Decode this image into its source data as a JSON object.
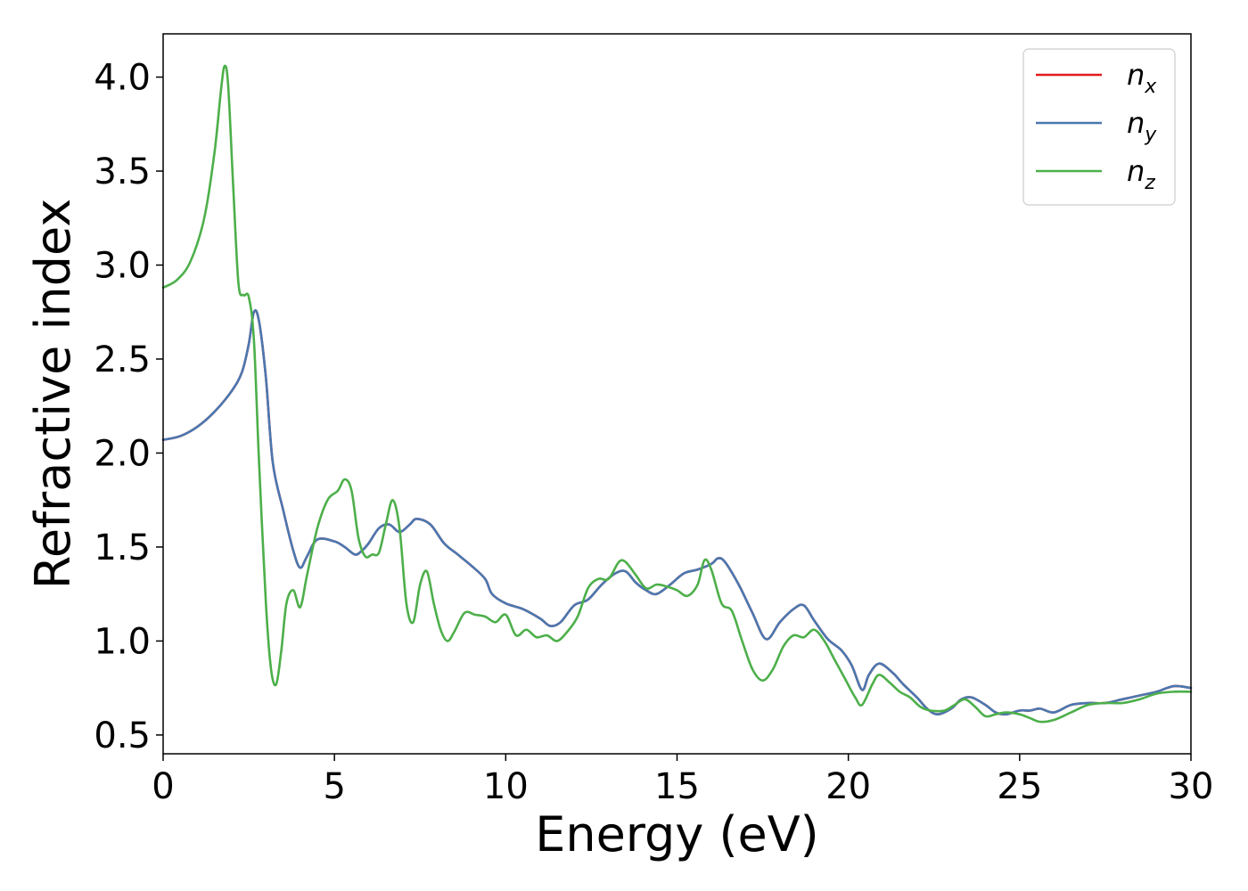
{
  "chart_data": {
    "type": "line",
    "xlabel": "Energy (eV)",
    "ylabel": "Refractive index",
    "xlim": [
      0,
      30
    ],
    "ylim": [
      0.4,
      4.23
    ],
    "xticks": [
      0,
      5,
      10,
      15,
      20,
      25,
      30
    ],
    "yticks": [
      0.5,
      1.0,
      1.5,
      2.0,
      2.5,
      3.0,
      3.5,
      4.0
    ],
    "xtick_labels": [
      "0",
      "5",
      "10",
      "15",
      "20",
      "25",
      "30"
    ],
    "ytick_labels": [
      "0.5",
      "1.0",
      "1.5",
      "2.0",
      "2.5",
      "3.0",
      "3.5",
      "4.0"
    ],
    "grid": false,
    "legend_position": "top-right",
    "series": [
      {
        "name": "n_x",
        "legend_base": "n",
        "legend_sub": "x",
        "color": "#e41a1c",
        "x": [
          0,
          0.5,
          1.0,
          1.5,
          2.0,
          2.3,
          2.5,
          2.65,
          2.8,
          3.0,
          3.2,
          3.5,
          3.8,
          4.0,
          4.2,
          4.5,
          5.0,
          5.3,
          5.6,
          5.8,
          6.0,
          6.3,
          6.6,
          6.9,
          7.2,
          7.4,
          7.8,
          8.2,
          8.6,
          9.0,
          9.4,
          9.6,
          10.0,
          10.5,
          11.0,
          11.3,
          11.6,
          12.0,
          12.4,
          12.8,
          13.2,
          13.5,
          13.8,
          14.1,
          14.4,
          14.8,
          15.2,
          15.6,
          16.0,
          16.2,
          16.4,
          16.8,
          17.2,
          17.6,
          18.0,
          18.4,
          18.7,
          19.0,
          19.4,
          19.8,
          20.1,
          20.4,
          20.6,
          20.9,
          21.3,
          21.6,
          22.0,
          22.3,
          22.6,
          23.0,
          23.3,
          23.6,
          24.0,
          24.3,
          24.6,
          25.0,
          25.3,
          25.6,
          26.0,
          26.5,
          27.0,
          27.5,
          28.0,
          28.5,
          29.0,
          29.5,
          30.0
        ],
        "y": [
          2.07,
          2.09,
          2.14,
          2.22,
          2.33,
          2.43,
          2.58,
          2.75,
          2.7,
          2.4,
          1.95,
          1.7,
          1.48,
          1.39,
          1.45,
          1.54,
          1.53,
          1.5,
          1.46,
          1.48,
          1.52,
          1.6,
          1.62,
          1.58,
          1.62,
          1.65,
          1.62,
          1.52,
          1.46,
          1.4,
          1.33,
          1.25,
          1.2,
          1.17,
          1.12,
          1.08,
          1.1,
          1.19,
          1.22,
          1.3,
          1.36,
          1.37,
          1.31,
          1.27,
          1.25,
          1.3,
          1.36,
          1.38,
          1.41,
          1.44,
          1.42,
          1.3,
          1.15,
          1.01,
          1.1,
          1.17,
          1.19,
          1.11,
          1.01,
          0.95,
          0.87,
          0.74,
          0.82,
          0.88,
          0.83,
          0.77,
          0.7,
          0.64,
          0.61,
          0.64,
          0.69,
          0.7,
          0.66,
          0.62,
          0.61,
          0.63,
          0.63,
          0.64,
          0.62,
          0.66,
          0.67,
          0.67,
          0.69,
          0.71,
          0.73,
          0.76,
          0.75
        ]
      },
      {
        "name": "n_y",
        "legend_base": "n",
        "legend_sub": "y",
        "color": "#4a78b0",
        "x": [
          0,
          0.5,
          1.0,
          1.5,
          2.0,
          2.3,
          2.5,
          2.65,
          2.8,
          3.0,
          3.2,
          3.5,
          3.8,
          4.0,
          4.2,
          4.5,
          5.0,
          5.3,
          5.6,
          5.8,
          6.0,
          6.3,
          6.6,
          6.9,
          7.2,
          7.4,
          7.8,
          8.2,
          8.6,
          9.0,
          9.4,
          9.6,
          10.0,
          10.5,
          11.0,
          11.3,
          11.6,
          12.0,
          12.4,
          12.8,
          13.2,
          13.5,
          13.8,
          14.1,
          14.4,
          14.8,
          15.2,
          15.6,
          16.0,
          16.2,
          16.4,
          16.8,
          17.2,
          17.6,
          18.0,
          18.4,
          18.7,
          19.0,
          19.4,
          19.8,
          20.1,
          20.4,
          20.6,
          20.9,
          21.3,
          21.6,
          22.0,
          22.3,
          22.6,
          23.0,
          23.3,
          23.6,
          24.0,
          24.3,
          24.6,
          25.0,
          25.3,
          25.6,
          26.0,
          26.5,
          27.0,
          27.5,
          28.0,
          28.5,
          29.0,
          29.5,
          30.0
        ],
        "y": [
          2.07,
          2.09,
          2.14,
          2.22,
          2.33,
          2.43,
          2.58,
          2.75,
          2.7,
          2.4,
          1.95,
          1.7,
          1.48,
          1.39,
          1.45,
          1.54,
          1.53,
          1.5,
          1.46,
          1.48,
          1.52,
          1.6,
          1.62,
          1.58,
          1.62,
          1.65,
          1.62,
          1.52,
          1.46,
          1.4,
          1.33,
          1.25,
          1.2,
          1.17,
          1.12,
          1.08,
          1.1,
          1.19,
          1.22,
          1.3,
          1.36,
          1.37,
          1.31,
          1.27,
          1.25,
          1.3,
          1.36,
          1.38,
          1.41,
          1.44,
          1.42,
          1.3,
          1.15,
          1.01,
          1.1,
          1.17,
          1.19,
          1.11,
          1.01,
          0.95,
          0.87,
          0.74,
          0.82,
          0.88,
          0.83,
          0.77,
          0.7,
          0.64,
          0.61,
          0.64,
          0.69,
          0.7,
          0.66,
          0.62,
          0.61,
          0.63,
          0.63,
          0.64,
          0.62,
          0.66,
          0.67,
          0.67,
          0.69,
          0.71,
          0.73,
          0.76,
          0.75
        ]
      },
      {
        "name": "n_z",
        "legend_base": "n",
        "legend_sub": "z",
        "color": "#4daf4a",
        "x": [
          0,
          0.4,
          0.8,
          1.2,
          1.5,
          1.7,
          1.8,
          1.9,
          2.05,
          2.2,
          2.35,
          2.5,
          2.65,
          2.8,
          3.0,
          3.15,
          3.3,
          3.45,
          3.6,
          3.8,
          4.0,
          4.2,
          4.5,
          4.8,
          5.1,
          5.3,
          5.5,
          5.7,
          5.9,
          6.1,
          6.3,
          6.5,
          6.7,
          6.9,
          7.1,
          7.3,
          7.5,
          7.7,
          7.9,
          8.1,
          8.3,
          8.5,
          8.8,
          9.1,
          9.4,
          9.7,
          10.0,
          10.3,
          10.6,
          10.9,
          11.2,
          11.5,
          11.8,
          12.1,
          12.4,
          12.7,
          13.0,
          13.3,
          13.5,
          13.8,
          14.1,
          14.4,
          14.7,
          15.0,
          15.3,
          15.6,
          15.8,
          16.0,
          16.3,
          16.6,
          16.9,
          17.2,
          17.5,
          17.8,
          18.1,
          18.4,
          18.7,
          19.0,
          19.3,
          19.6,
          19.9,
          20.2,
          20.4,
          20.7,
          20.9,
          21.2,
          21.5,
          21.8,
          22.1,
          22.4,
          22.8,
          23.1,
          23.4,
          23.7,
          24.0,
          24.3,
          24.6,
          25.0,
          25.3,
          25.6,
          26.0,
          26.5,
          27.0,
          27.5,
          28.0,
          28.5,
          29.0,
          29.5,
          30.0
        ],
        "y": [
          2.88,
          2.92,
          3.02,
          3.25,
          3.6,
          3.95,
          4.06,
          3.95,
          3.4,
          2.9,
          2.84,
          2.83,
          2.6,
          1.95,
          1.2,
          0.85,
          0.77,
          0.95,
          1.2,
          1.27,
          1.18,
          1.35,
          1.6,
          1.75,
          1.8,
          1.86,
          1.8,
          1.55,
          1.45,
          1.46,
          1.47,
          1.62,
          1.75,
          1.6,
          1.2,
          1.1,
          1.3,
          1.37,
          1.2,
          1.06,
          1.0,
          1.05,
          1.15,
          1.14,
          1.13,
          1.1,
          1.14,
          1.03,
          1.06,
          1.02,
          1.03,
          1.0,
          1.05,
          1.13,
          1.28,
          1.33,
          1.33,
          1.42,
          1.42,
          1.35,
          1.28,
          1.3,
          1.29,
          1.27,
          1.24,
          1.3,
          1.43,
          1.38,
          1.2,
          1.16,
          1.0,
          0.85,
          0.79,
          0.85,
          0.97,
          1.03,
          1.02,
          1.06,
          1.0,
          0.9,
          0.8,
          0.7,
          0.66,
          0.77,
          0.82,
          0.78,
          0.73,
          0.7,
          0.65,
          0.63,
          0.63,
          0.66,
          0.69,
          0.65,
          0.6,
          0.61,
          0.62,
          0.61,
          0.59,
          0.57,
          0.58,
          0.62,
          0.66,
          0.67,
          0.67,
          0.69,
          0.72,
          0.73,
          0.73
        ]
      }
    ]
  }
}
